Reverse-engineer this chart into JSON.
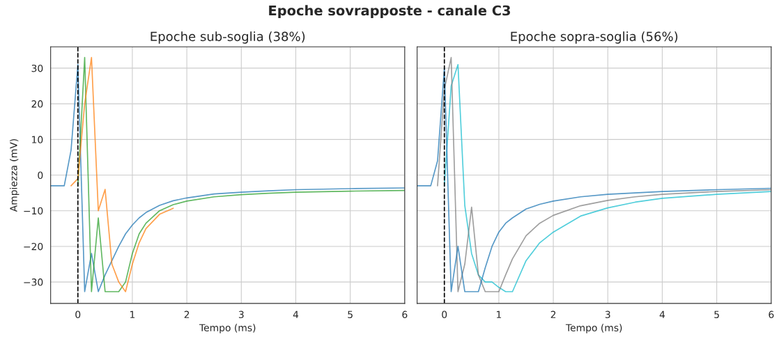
{
  "chart_data": [
    {
      "type": "line",
      "title": "Epoche sub-soglia (38%)",
      "xlabel": "Tempo (ms)",
      "ylabel": "Ampiezza (mV)",
      "annotations": [
        "Epoche sovrapposte - canale C3"
      ],
      "series": [
        {
          "color": "#1f77b4",
          "x": [
            -0.5,
            -0.25,
            -0.125,
            0,
            0.125,
            0.25,
            0.375,
            0.5,
            0.625,
            0.75,
            0.875,
            1,
            1.125,
            1.25,
            1.5,
            1.75,
            2,
            2.5,
            3,
            3.5,
            4,
            5,
            6
          ],
          "values": [
            -3,
            -3,
            7,
            31,
            -32.7,
            -22,
            -32.7,
            -28,
            -24,
            -20,
            -16.5,
            -14,
            -12,
            -10.5,
            -8.5,
            -7.2,
            -6.4,
            -5.3,
            -4.8,
            -4.4,
            -4.1,
            -3.8,
            -3.6
          ]
        },
        {
          "color": "#2ca02c",
          "x": [
            0,
            0.125,
            0.25,
            0.375,
            0.5,
            0.75,
            0.875,
            1,
            1.125,
            1.25,
            1.5,
            1.75,
            2,
            2.5,
            3,
            3.5,
            4,
            5,
            6
          ],
          "values": [
            -3,
            33,
            -32.7,
            -12,
            -32.7,
            -32.7,
            -30,
            -22,
            -16.5,
            -13.5,
            -10,
            -8.3,
            -7.3,
            -6.1,
            -5.5,
            -5.1,
            -4.8,
            -4.5,
            -4.3
          ]
        },
        {
          "color": "#ff7f0e",
          "x": [
            -0.125,
            0,
            0.125,
            0.25,
            0.375,
            0.5,
            0.625,
            0.75,
            0.875,
            1,
            1.125,
            1.25,
            1.5,
            1.75
          ],
          "values": [
            -3,
            -1,
            20,
            33,
            -10,
            -4,
            -25,
            -30,
            -32.7,
            -25,
            -19,
            -15,
            -11,
            -9.3
          ]
        }
      ],
      "xlim": [
        -0.5,
        6
      ],
      "xticks": [
        0,
        1,
        2,
        3,
        4,
        5,
        6
      ],
      "ylim": [
        -36,
        36
      ],
      "yticks": [
        {
          "value": -30,
          "label": "−30"
        },
        {
          "value": -20,
          "label": "−20"
        },
        {
          "value": -10,
          "label": "−10"
        },
        0,
        10,
        20,
        30
      ],
      "ref_lines": [
        {
          "axis": "x",
          "value": 0,
          "color": "#000000",
          "line_style": "dashed"
        }
      ],
      "grid": true
    },
    {
      "type": "line",
      "title": "Epoche sopra-soglia (56%)",
      "xlabel": "Tempo (ms)",
      "series": [
        {
          "color": "#17becf",
          "x": [
            0,
            0.125,
            0.25,
            0.375,
            0.5,
            0.625,
            0.75,
            0.875,
            1,
            1.125,
            1.25,
            1.5,
            1.75,
            2,
            2.5,
            3,
            3.5,
            4,
            5,
            6
          ],
          "values": [
            -3,
            25,
            31,
            -8.5,
            -22,
            -28,
            -30,
            -30,
            -31.5,
            -32.7,
            -32.7,
            -24,
            -19,
            -16,
            -11.5,
            -9.2,
            -7.6,
            -6.5,
            -5.4,
            -4.6
          ]
        },
        {
          "color": "#7f7f7f",
          "x": [
            -0.125,
            0,
            0.125,
            0.25,
            0.375,
            0.5,
            0.625,
            0.75,
            1,
            1.125,
            1.25,
            1.5,
            1.75,
            2,
            2.5,
            3,
            3.5,
            4,
            5,
            6
          ],
          "values": [
            -3,
            24,
            33,
            -32.7,
            -25,
            -9,
            -28,
            -32.7,
            -32.7,
            -28,
            -23.5,
            -17,
            -13.5,
            -11.3,
            -8.6,
            -7.1,
            -6.1,
            -5.4,
            -4.6,
            -4.1
          ]
        },
        {
          "color": "#1f77b4",
          "x": [
            -0.5,
            -0.25,
            -0.125,
            0,
            0.125,
            0.25,
            0.375,
            0.625,
            0.75,
            0.875,
            1,
            1.125,
            1.25,
            1.5,
            1.75,
            2,
            2.5,
            3,
            3.5,
            4,
            5,
            6
          ],
          "values": [
            -3,
            -3,
            4,
            30,
            -32.7,
            -20,
            -32.7,
            -32.7,
            -26,
            -20,
            -16,
            -13.5,
            -12,
            -9.5,
            -8.2,
            -7.3,
            -6.1,
            -5.4,
            -5,
            -4.6,
            -4.1,
            -3.7
          ]
        }
      ],
      "xlim": [
        -0.5,
        6
      ],
      "xticks": [
        0,
        1,
        2,
        3,
        4,
        5,
        6
      ],
      "ylim": [
        -36,
        36
      ],
      "yticks": [
        -30,
        -20,
        -10,
        0,
        10,
        20,
        30
      ],
      "tick_labels": "x",
      "ref_lines": [
        {
          "axis": "x",
          "value": 0,
          "color": "#000000",
          "line_style": "dashed"
        }
      ],
      "grid": true
    }
  ]
}
